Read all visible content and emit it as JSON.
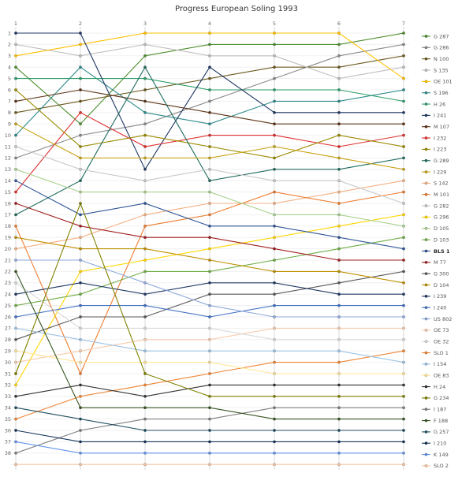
{
  "chart_data": {
    "type": "line",
    "subtype": "bump-rank-chart",
    "title": "Progress European Soling 1993",
    "xlabel": "",
    "ylabel": "",
    "x_ticks": [
      1,
      2,
      3,
      4,
      5,
      6,
      7
    ],
    "y_ticks_shown": 38,
    "positions": 39,
    "x_axis_position": "top",
    "y_axis_position": "left",
    "grid": true,
    "legend_position": "right",
    "series": [
      {
        "name": "G 287",
        "color": "#4f8f2f",
        "positions": [
          4,
          9,
          3,
          2,
          2,
          2,
          1
        ]
      },
      {
        "name": "G 286",
        "color": "#8a8a8a",
        "positions": [
          12,
          10,
          9,
          7,
          5,
          3,
          2
        ]
      },
      {
        "name": "N 100",
        "color": "#6b5a1e",
        "positions": [
          8,
          7,
          6,
          5,
          4,
          4,
          3
        ]
      },
      {
        "name": "S 135",
        "color": "#bfbfbf",
        "positions": [
          2,
          3,
          2,
          3,
          3,
          5,
          4
        ]
      },
      {
        "name": "OE 101",
        "color": "#ffc000",
        "positions": [
          3,
          2,
          1,
          1,
          1,
          1,
          5
        ]
      },
      {
        "name": "S 196",
        "color": "#2e8b8b",
        "positions": [
          10,
          4,
          8,
          9,
          7,
          7,
          6
        ]
      },
      {
        "name": "H 26",
        "color": "#2e9e6b",
        "positions": [
          5,
          5,
          5,
          6,
          6,
          6,
          7
        ]
      },
      {
        "name": "I 241",
        "color": "#1f3864",
        "positions": [
          1,
          1,
          13,
          4,
          8,
          8,
          8
        ]
      },
      {
        "name": "M 107",
        "color": "#5c3317",
        "positions": [
          7,
          6,
          7,
          8,
          9,
          9,
          9
        ]
      },
      {
        "name": "I 232",
        "color": "#e03030",
        "positions": [
          15,
          8,
          11,
          10,
          10,
          11,
          10
        ]
      },
      {
        "name": "I 223",
        "color": "#9a8a00",
        "positions": [
          6,
          11,
          10,
          11,
          12,
          10,
          11
        ]
      },
      {
        "name": "G 289",
        "color": "#1f6b5e",
        "positions": [
          17,
          14,
          4,
          14,
          13,
          13,
          12
        ]
      },
      {
        "name": "I 229",
        "color": "#c8a415",
        "positions": [
          9,
          12,
          12,
          12,
          11,
          12,
          13
        ]
      },
      {
        "name": "S 142",
        "color": "#f4b183",
        "positions": [
          20,
          19,
          17,
          16,
          16,
          15,
          14
        ]
      },
      {
        "name": "M 101",
        "color": "#ed7d31",
        "positions": [
          18,
          31,
          18,
          17,
          15,
          16,
          15
        ]
      },
      {
        "name": "G 282",
        "color": "#c9c9c9",
        "positions": [
          11,
          13,
          14,
          13,
          14,
          14,
          16
        ]
      },
      {
        "name": "G 296",
        "color": "#ffd700",
        "positions": [
          32,
          22,
          21,
          20,
          19,
          18,
          17
        ]
      },
      {
        "name": "D 105",
        "color": "#a9d18e",
        "positions": [
          13,
          15,
          15,
          15,
          17,
          17,
          18
        ]
      },
      {
        "name": "D 103",
        "color": "#70ad47",
        "positions": [
          25,
          24,
          22,
          22,
          21,
          20,
          19
        ]
      },
      {
        "name": "BLS 1",
        "color": "#2f5597",
        "positions": [
          14,
          17,
          16,
          18,
          18,
          19,
          20
        ],
        "emphasis": true
      },
      {
        "name": "M 77",
        "color": "#a02020",
        "positions": [
          16,
          18,
          19,
          19,
          20,
          21,
          21
        ]
      },
      {
        "name": "G 300",
        "color": "#595959",
        "positions": [
          28,
          26,
          26,
          24,
          24,
          23,
          22
        ]
      },
      {
        "name": "D 104",
        "color": "#bf9000",
        "positions": [
          19,
          20,
          20,
          21,
          22,
          22,
          23
        ]
      },
      {
        "name": "I 239",
        "color": "#203864",
        "positions": [
          24,
          23,
          24,
          23,
          23,
          24,
          24
        ]
      },
      {
        "name": "I 240",
        "color": "#4472c4",
        "positions": [
          26,
          25,
          25,
          26,
          25,
          25,
          25
        ]
      },
      {
        "name": "US 802",
        "color": "#8faadc",
        "positions": [
          21,
          21,
          23,
          25,
          26,
          26,
          26
        ]
      },
      {
        "name": "OE 73",
        "color": "#f8cbad",
        "positions": [
          30,
          29,
          28,
          28,
          27,
          27,
          27
        ]
      },
      {
        "name": "OE 32",
        "color": "#d9d9d9",
        "positions": [
          23,
          27,
          27,
          27,
          28,
          28,
          28
        ]
      },
      {
        "name": "SLO 1",
        "color": "#ef8636",
        "positions": [
          35,
          33,
          32,
          31,
          30,
          30,
          29
        ]
      },
      {
        "name": "I 154",
        "color": "#9dc3e6",
        "positions": [
          27,
          28,
          29,
          29,
          29,
          29,
          30
        ]
      },
      {
        "name": "OE 83",
        "color": "#ffe699",
        "positions": [
          29,
          30,
          30,
          30,
          31,
          31,
          31
        ]
      },
      {
        "name": "H 24",
        "color": "#333333",
        "positions": [
          33,
          32,
          33,
          32,
          32,
          32,
          32
        ]
      },
      {
        "name": "G 234",
        "color": "#808000",
        "positions": [
          31,
          16,
          31,
          33,
          33,
          33,
          33
        ]
      },
      {
        "name": "I 187",
        "color": "#7f7f7f",
        "positions": [
          38,
          36,
          35,
          35,
          34,
          34,
          34
        ]
      },
      {
        "name": "F 188",
        "color": "#375623",
        "positions": [
          22,
          34,
          34,
          34,
          35,
          35,
          35
        ]
      },
      {
        "name": "G 257",
        "color": "#1f4e5f",
        "positions": [
          34,
          35,
          36,
          36,
          36,
          36,
          36
        ]
      },
      {
        "name": "I 210",
        "color": "#16365c",
        "positions": [
          36,
          37,
          37,
          37,
          37,
          37,
          37
        ]
      },
      {
        "name": "K 149",
        "color": "#6495ed",
        "positions": [
          37,
          38,
          38,
          38,
          38,
          38,
          38
        ]
      },
      {
        "name": "SLO 2",
        "color": "#f7c7a3",
        "positions": [
          39,
          39,
          39,
          39,
          39,
          39,
          39
        ]
      }
    ]
  }
}
